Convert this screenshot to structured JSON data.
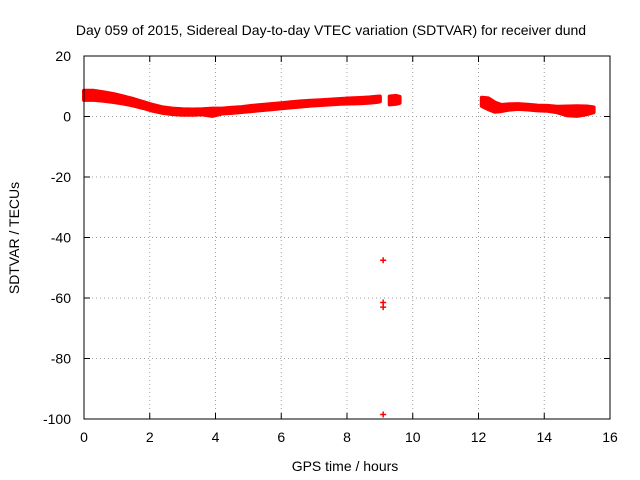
{
  "chart_data": {
    "type": "scatter",
    "title": "Day 059 of 2015, Sidereal Day-to-day VTEC variation (SDTVAR) for receiver dund",
    "xlabel": "GPS time / hours",
    "ylabel": "SDTVAR / TECUs",
    "xlim": [
      0,
      16
    ],
    "ylim": [
      -100,
      20
    ],
    "xticks": [
      "0",
      "2",
      "4",
      "6",
      "8",
      "10",
      "12",
      "14",
      "16"
    ],
    "yticks": [
      "20",
      "0",
      "-20",
      "-40",
      "-60",
      "-80",
      "-100"
    ],
    "grid": true,
    "marker": "plus",
    "color": "#ff0000",
    "series": [
      {
        "name": "SDTVAR",
        "band": [
          [
            0.0,
            5.5,
            8.5
          ],
          [
            0.3,
            5.5,
            8.5
          ],
          [
            0.6,
            5.2,
            8.0
          ],
          [
            0.9,
            4.8,
            7.4
          ],
          [
            1.2,
            4.3,
            6.6
          ],
          [
            1.5,
            3.6,
            5.8
          ],
          [
            1.8,
            2.8,
            4.8
          ],
          [
            2.1,
            1.9,
            3.8
          ],
          [
            2.4,
            1.2,
            3.0
          ],
          [
            2.7,
            0.8,
            2.6
          ],
          [
            3.0,
            0.6,
            2.4
          ],
          [
            3.3,
            0.6,
            2.3
          ],
          [
            3.6,
            0.7,
            2.4
          ],
          [
            3.9,
            0.2,
            2.6
          ],
          [
            4.2,
            1.0,
            2.6
          ],
          [
            4.5,
            1.2,
            2.9
          ],
          [
            4.8,
            1.5,
            3.1
          ],
          [
            5.1,
            1.8,
            3.5
          ],
          [
            5.4,
            2.1,
            3.8
          ],
          [
            5.7,
            2.4,
            4.1
          ],
          [
            6.0,
            2.7,
            4.4
          ],
          [
            6.3,
            3.0,
            4.7
          ],
          [
            6.6,
            3.3,
            5.0
          ],
          [
            6.9,
            3.6,
            5.2
          ],
          [
            7.2,
            3.8,
            5.4
          ],
          [
            7.5,
            4.0,
            5.6
          ],
          [
            7.8,
            4.2,
            5.8
          ],
          [
            8.1,
            4.3,
            6.0
          ],
          [
            8.4,
            4.4,
            6.1
          ],
          [
            8.7,
            4.6,
            6.3
          ],
          [
            8.9,
            4.8,
            6.5
          ],
          [
            9.0,
            5.0,
            6.6
          ],
          [
            null,
            null,
            null
          ],
          [
            9.3,
            4.0,
            6.6
          ],
          [
            9.5,
            4.2,
            6.8
          ],
          [
            9.6,
            4.5,
            6.5
          ],
          [
            null,
            null,
            null
          ],
          [
            12.1,
            3.5,
            6.2
          ],
          [
            12.3,
            2.4,
            6.0
          ],
          [
            12.5,
            1.6,
            4.6
          ],
          [
            12.7,
            1.8,
            3.8
          ],
          [
            12.9,
            2.2,
            4.0
          ],
          [
            13.2,
            2.5,
            4.1
          ],
          [
            13.5,
            2.3,
            3.9
          ],
          [
            13.8,
            2.0,
            3.6
          ],
          [
            14.1,
            1.9,
            3.5
          ],
          [
            14.4,
            1.4,
            3.2
          ],
          [
            14.7,
            0.4,
            3.3
          ],
          [
            15.0,
            0.2,
            3.4
          ],
          [
            15.3,
            0.8,
            3.3
          ],
          [
            15.5,
            1.4,
            3.0
          ]
        ],
        "outliers": [
          [
            9.1,
            -47.5
          ],
          [
            9.1,
            -61.5
          ],
          [
            9.1,
            -63.0
          ],
          [
            9.1,
            -98.5
          ]
        ]
      }
    ]
  }
}
